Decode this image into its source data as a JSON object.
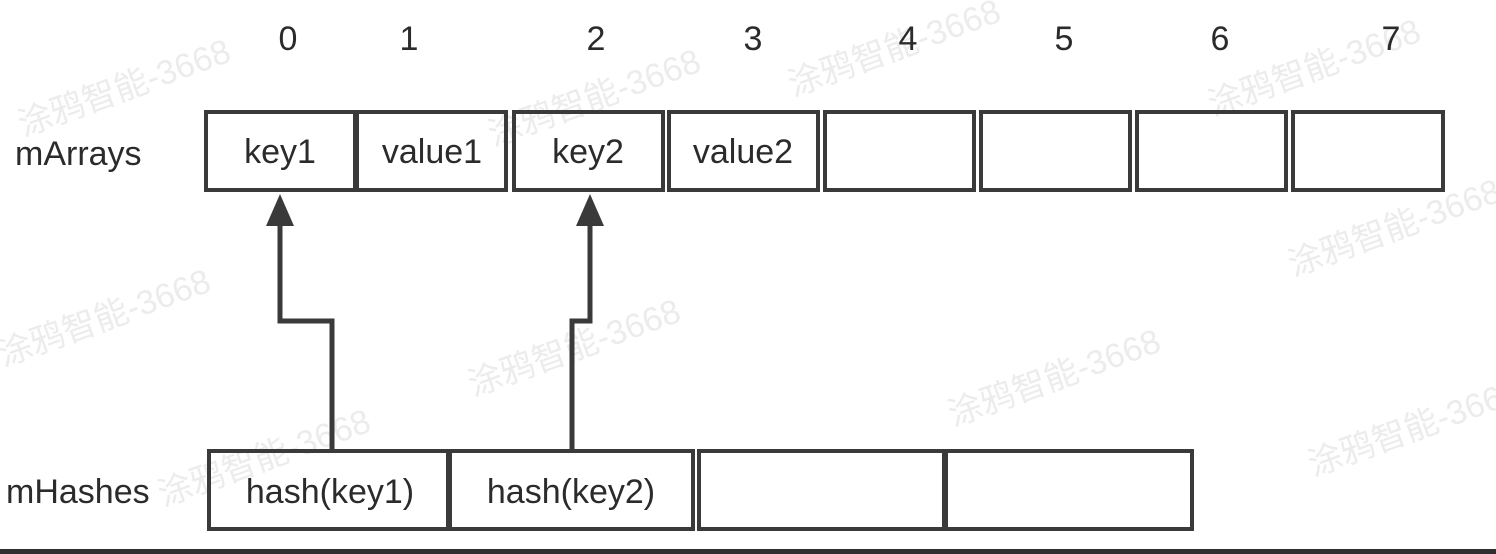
{
  "diagram": {
    "index_labels": [
      "0",
      "1",
      "2",
      "3",
      "4",
      "5",
      "6",
      "7"
    ],
    "arrays": {
      "label": "mArrays",
      "cells": [
        "key1",
        "value1",
        "key2",
        "value2",
        "",
        "",
        "",
        ""
      ]
    },
    "hashes": {
      "label": "mHashes",
      "cells": [
        "hash(key1)",
        "hash(key2)",
        "",
        ""
      ]
    },
    "arrows": [
      {
        "from": "hash(key1)",
        "to": "key1"
      },
      {
        "from": "hash(key2)",
        "to": "key2"
      }
    ],
    "watermark_text": "涂鸦智能-3668",
    "colors": {
      "stroke": "#3a3a3a",
      "text": "#2b2b2b",
      "watermark": "#ececec"
    }
  }
}
